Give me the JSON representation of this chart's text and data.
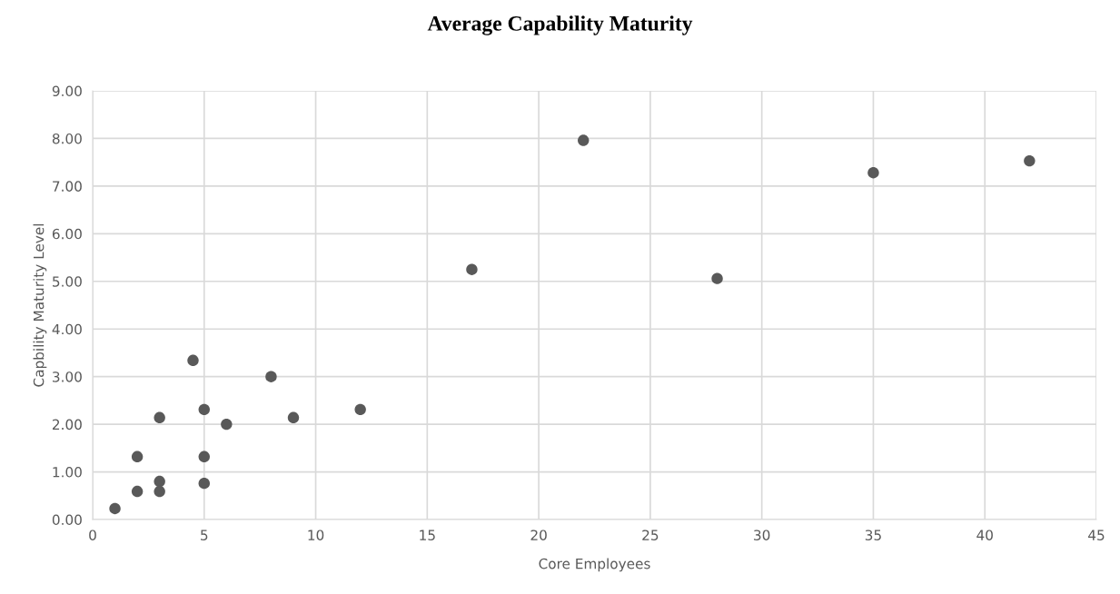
{
  "chart_data": {
    "type": "scatter",
    "title": "Average Capability Maturity",
    "xlabel": "Core Employees",
    "ylabel": "Capbility Maturity Level",
    "x": [
      1,
      2,
      2,
      3,
      3,
      3,
      4.5,
      5,
      5,
      5,
      6,
      8,
      9,
      12,
      17,
      22,
      28,
      35,
      42
    ],
    "values": [
      0.23,
      1.32,
      0.59,
      2.14,
      0.8,
      0.59,
      3.34,
      2.31,
      1.32,
      0.76,
      2.0,
      3.0,
      2.14,
      2.31,
      5.25,
      7.96,
      5.06,
      7.28,
      7.53
    ],
    "color": "#595959",
    "marker": "circle",
    "xlim": [
      0,
      45
    ],
    "xticks": [
      0,
      5,
      10,
      15,
      20,
      25,
      30,
      35,
      40,
      45
    ],
    "ylim": [
      0,
      9
    ],
    "yticks": [
      {
        "value": 0,
        "label": "0.00"
      },
      {
        "value": 1,
        "label": "1.00"
      },
      {
        "value": 2,
        "label": "2.00"
      },
      {
        "value": 3,
        "label": "3.00"
      },
      {
        "value": 4,
        "label": "4.00"
      },
      {
        "value": 5,
        "label": "5.00"
      },
      {
        "value": 6,
        "label": "6.00"
      },
      {
        "value": 7,
        "label": "7.00"
      },
      {
        "value": 8,
        "label": "8.00"
      },
      {
        "value": 9,
        "label": "9.00"
      }
    ],
    "grid": true
  }
}
